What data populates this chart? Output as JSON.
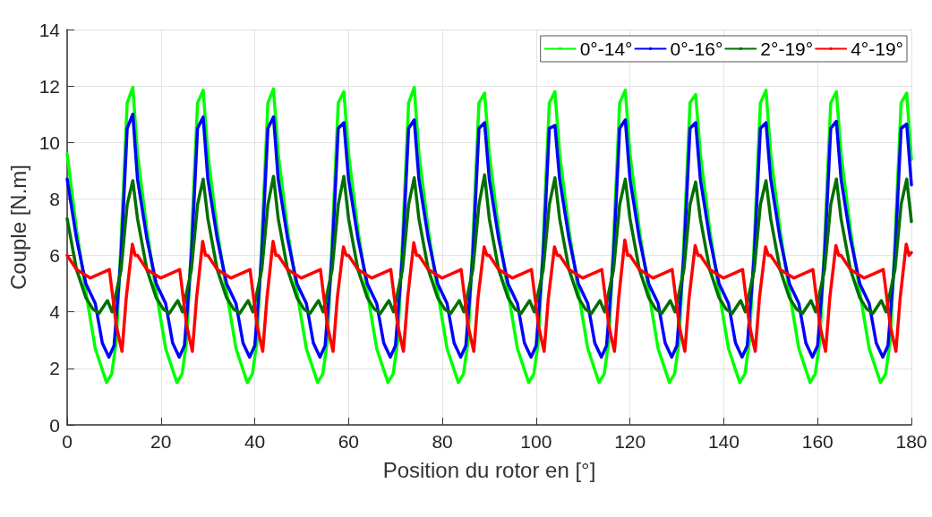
{
  "chart_data": {
    "type": "line",
    "xlabel": "Position du rotor en [°]",
    "ylabel": "Couple [N.m]",
    "xlim": [
      0,
      180
    ],
    "xticks": [
      0,
      20,
      40,
      60,
      80,
      100,
      120,
      140,
      160,
      180
    ],
    "ylim": [
      0,
      14
    ],
    "yticks": [
      0,
      2,
      4,
      6,
      8,
      10,
      12,
      14
    ],
    "grid": true,
    "legend": "top right",
    "marker": "none",
    "line_style": "solid",
    "series": [
      {
        "name": "0°-14°",
        "color": "#00ff00",
        "x": [
          0,
          2,
          4,
          6,
          8.4,
          9.5,
          10.5,
          11.5,
          12.8,
          14,
          15,
          17,
          19,
          21,
          23.4,
          24.5,
          25.5,
          26.5,
          27.8,
          29,
          30,
          32,
          34,
          36,
          38.4,
          39.5,
          40.5,
          41.5,
          42.8,
          44,
          45,
          47,
          49,
          51,
          53.4,
          54.5,
          55.5,
          56.5,
          57.8,
          59,
          60,
          62,
          64,
          66,
          68.4,
          69.5,
          70.5,
          71.5,
          72.8,
          74,
          75,
          77,
          79,
          81,
          83.4,
          84.5,
          85.5,
          86.5,
          87.8,
          89,
          90,
          92,
          94,
          96,
          98.4,
          99.5,
          100.5,
          101.5,
          102.8,
          104,
          105,
          107,
          109,
          111,
          113.4,
          114.5,
          115.5,
          116.5,
          117.8,
          119,
          120,
          122,
          124,
          126,
          128.4,
          129.5,
          130.5,
          131.5,
          132.8,
          134,
          135,
          137,
          139,
          141,
          143.4,
          144.5,
          145.5,
          146.5,
          147.8,
          149,
          150,
          152,
          154,
          156,
          158.4,
          159.5,
          160.5,
          161.5,
          162.8,
          164,
          165,
          167,
          169,
          171,
          173.4,
          174.5,
          175.5,
          176.5,
          177.8,
          179,
          180
        ],
        "values": [
          9.6,
          6.9,
          4.7,
          2.7,
          1.5,
          1.8,
          3.0,
          6.5,
          11.4,
          11.95,
          9.6,
          6.9,
          4.7,
          2.7,
          1.5,
          1.8,
          3.0,
          6.5,
          11.4,
          11.85,
          9.6,
          6.9,
          4.7,
          2.7,
          1.5,
          1.8,
          3.0,
          6.5,
          11.4,
          11.9,
          9.6,
          6.9,
          4.7,
          2.7,
          1.5,
          1.8,
          3.0,
          6.5,
          11.4,
          11.8,
          9.6,
          6.9,
          4.7,
          2.7,
          1.5,
          1.8,
          3.0,
          6.5,
          11.4,
          11.95,
          9.6,
          6.9,
          4.7,
          2.7,
          1.5,
          1.8,
          3.0,
          6.5,
          11.4,
          11.75,
          9.6,
          6.9,
          4.7,
          2.7,
          1.5,
          1.8,
          3.0,
          6.5,
          11.4,
          11.8,
          9.6,
          6.9,
          4.7,
          2.7,
          1.5,
          1.8,
          3.0,
          6.5,
          11.4,
          11.85,
          9.6,
          6.9,
          4.7,
          2.7,
          1.5,
          1.8,
          3.0,
          6.5,
          11.4,
          11.7,
          9.6,
          6.9,
          4.7,
          2.7,
          1.5,
          1.8,
          3.0,
          6.5,
          11.4,
          11.85,
          9.6,
          6.9,
          4.7,
          2.7,
          1.5,
          1.8,
          3.0,
          6.5,
          11.4,
          11.8,
          9.6,
          6.9,
          4.7,
          2.7,
          1.5,
          1.8,
          3.0,
          6.5,
          11.4,
          11.75,
          9.4
        ]
      },
      {
        "name": "0°-16°",
        "color": "#0000ff",
        "x": [
          0,
          2,
          4,
          6,
          7.5,
          8.9,
          10,
          11.5,
          12.8,
          14,
          15,
          17,
          19,
          21,
          22.5,
          23.9,
          25,
          26.5,
          27.8,
          29,
          30,
          32,
          34,
          36,
          37.5,
          38.9,
          40,
          41.5,
          42.8,
          44,
          45,
          47,
          49,
          51,
          52.5,
          53.9,
          55,
          56.5,
          57.8,
          59,
          60,
          62,
          64,
          66,
          67.5,
          68.9,
          70,
          71.5,
          72.8,
          74,
          75,
          77,
          79,
          81,
          82.5,
          83.9,
          85,
          86.5,
          87.8,
          89,
          90,
          92,
          94,
          96,
          97.5,
          98.9,
          100,
          101.5,
          102.8,
          104,
          105,
          107,
          109,
          111,
          112.5,
          113.9,
          115,
          116.5,
          117.8,
          119,
          120,
          122,
          124,
          126,
          127.5,
          128.9,
          130,
          131.5,
          132.8,
          134,
          135,
          137,
          139,
          141,
          142.5,
          143.9,
          145,
          146.5,
          147.8,
          149,
          150,
          152,
          154,
          156,
          157.5,
          158.9,
          160,
          161.5,
          162.8,
          164,
          165,
          167,
          169,
          171,
          172.5,
          173.9,
          175,
          176.5,
          177.8,
          179,
          180
        ],
        "values": [
          8.7,
          6.6,
          5.0,
          4.3,
          2.9,
          2.4,
          2.8,
          6.0,
          10.5,
          11.0,
          8.7,
          6.6,
          5.0,
          4.3,
          2.9,
          2.4,
          2.8,
          6.0,
          10.5,
          10.9,
          8.7,
          6.6,
          5.0,
          4.3,
          2.9,
          2.4,
          2.8,
          6.0,
          10.5,
          10.9,
          8.7,
          6.6,
          5.0,
          4.3,
          2.9,
          2.4,
          2.8,
          6.0,
          10.5,
          10.7,
          8.7,
          6.6,
          5.0,
          4.3,
          2.9,
          2.4,
          2.8,
          6.0,
          10.5,
          10.8,
          8.7,
          6.6,
          5.0,
          4.3,
          2.9,
          2.4,
          2.8,
          6.0,
          10.5,
          10.7,
          8.7,
          6.6,
          5.0,
          4.3,
          2.9,
          2.4,
          2.8,
          6.0,
          10.5,
          10.6,
          8.7,
          6.6,
          5.0,
          4.3,
          2.9,
          2.4,
          2.8,
          6.0,
          10.5,
          10.8,
          8.7,
          6.6,
          5.0,
          4.3,
          2.9,
          2.4,
          2.8,
          6.0,
          10.5,
          10.7,
          8.7,
          6.6,
          5.0,
          4.3,
          2.9,
          2.4,
          2.8,
          6.0,
          10.5,
          10.7,
          8.7,
          6.6,
          5.0,
          4.3,
          2.9,
          2.4,
          2.8,
          6.0,
          10.5,
          10.75,
          8.7,
          6.6,
          5.0,
          4.3,
          2.9,
          2.4,
          2.8,
          6.0,
          10.5,
          10.65,
          8.5
        ]
      },
      {
        "name": "2°-19°",
        "color": "#007000",
        "x": [
          0,
          2,
          4,
          5.5,
          6.8,
          8.6,
          9.6,
          11.5,
          12.8,
          14,
          15,
          17,
          19,
          20.5,
          21.8,
          23.6,
          24.6,
          26.5,
          27.8,
          29,
          30,
          32,
          34,
          35.5,
          36.8,
          38.6,
          39.6,
          41.5,
          42.8,
          44,
          45,
          47,
          49,
          50.5,
          51.8,
          53.6,
          54.6,
          56.5,
          57.8,
          59,
          60,
          62,
          64,
          65.5,
          66.8,
          68.6,
          69.6,
          71.5,
          72.8,
          74,
          75,
          77,
          79,
          80.5,
          81.8,
          83.6,
          84.6,
          86.5,
          87.8,
          89,
          90,
          92,
          94,
          95.5,
          96.8,
          98.6,
          99.6,
          101.5,
          102.8,
          104,
          105,
          107,
          109,
          110.5,
          111.8,
          113.6,
          114.6,
          116.5,
          117.8,
          119,
          120,
          122,
          124,
          125.5,
          126.8,
          128.6,
          129.6,
          131.5,
          132.8,
          134,
          135,
          137,
          139,
          140.5,
          141.8,
          143.6,
          144.6,
          146.5,
          147.8,
          149,
          150,
          152,
          154,
          155.5,
          156.8,
          158.6,
          159.6,
          161.5,
          162.8,
          164,
          165,
          167,
          169,
          170.5,
          171.8,
          173.6,
          174.6,
          176.5,
          177.8,
          179,
          180
        ],
        "values": [
          7.3,
          5.5,
          4.5,
          4.1,
          3.95,
          4.4,
          4.0,
          5.5,
          7.8,
          8.65,
          7.3,
          5.5,
          4.5,
          4.1,
          3.95,
          4.4,
          4.0,
          5.5,
          7.8,
          8.7,
          7.3,
          5.5,
          4.5,
          4.1,
          3.95,
          4.4,
          4.0,
          5.5,
          7.8,
          8.8,
          7.3,
          5.5,
          4.5,
          4.1,
          3.95,
          4.4,
          4.0,
          5.5,
          7.8,
          8.8,
          7.3,
          5.5,
          4.5,
          4.1,
          3.95,
          4.4,
          4.0,
          5.5,
          7.8,
          8.75,
          7.3,
          5.5,
          4.5,
          4.1,
          3.95,
          4.4,
          4.0,
          5.5,
          7.8,
          8.85,
          7.3,
          5.5,
          4.5,
          4.1,
          3.95,
          4.4,
          4.0,
          5.5,
          7.8,
          8.75,
          7.3,
          5.5,
          4.5,
          4.1,
          3.95,
          4.4,
          4.0,
          5.5,
          7.8,
          8.7,
          7.3,
          5.5,
          4.5,
          4.1,
          3.95,
          4.4,
          4.0,
          5.5,
          7.8,
          8.6,
          7.3,
          5.5,
          4.5,
          4.1,
          3.95,
          4.4,
          4.0,
          5.5,
          7.8,
          8.65,
          7.3,
          5.5,
          4.5,
          4.1,
          3.95,
          4.4,
          4.0,
          5.5,
          7.8,
          8.7,
          7.3,
          5.5,
          4.5,
          4.1,
          3.95,
          4.4,
          4.0,
          5.5,
          7.8,
          8.7,
          7.2
        ]
      },
      {
        "name": "4°-19°",
        "color": "#ff0000",
        "x": [
          0,
          2,
          4.9,
          9,
          10.5,
          11.7,
          12.6,
          13.9,
          14.5,
          15,
          17,
          19.9,
          24,
          25.5,
          26.7,
          27.6,
          28.9,
          29.5,
          30,
          32,
          34.9,
          39,
          40.5,
          41.7,
          42.6,
          43.9,
          44.5,
          45,
          47,
          49.9,
          54,
          55.5,
          56.7,
          57.6,
          58.9,
          59.5,
          60,
          62,
          64.9,
          69,
          70.5,
          71.7,
          72.6,
          73.9,
          74.5,
          75,
          77,
          79.9,
          84,
          85.5,
          86.7,
          87.6,
          88.9,
          89.5,
          90,
          92,
          94.9,
          99,
          100.5,
          101.7,
          102.6,
          103.9,
          104.5,
          105,
          107,
          109.9,
          114,
          115.5,
          116.7,
          117.6,
          118.9,
          119.5,
          120,
          122,
          124.9,
          129,
          130.5,
          131.7,
          132.6,
          133.9,
          134.5,
          135,
          137,
          139.9,
          144,
          145.5,
          146.7,
          147.6,
          148.9,
          149.5,
          150,
          152,
          154.9,
          159,
          160.5,
          161.7,
          162.6,
          163.9,
          164.5,
          165,
          167,
          169.9,
          174,
          175.5,
          176.7,
          177.6,
          178.9,
          179.5,
          180
        ],
        "values": [
          6.0,
          5.5,
          5.2,
          5.5,
          3.5,
          2.6,
          4.5,
          6.4,
          6.0,
          6.0,
          5.5,
          5.2,
          5.5,
          3.5,
          2.6,
          4.5,
          6.5,
          6.0,
          6.0,
          5.5,
          5.2,
          5.5,
          3.5,
          2.6,
          4.5,
          6.5,
          6.0,
          6.0,
          5.5,
          5.2,
          5.5,
          3.5,
          2.6,
          4.5,
          6.3,
          6.0,
          6.0,
          5.5,
          5.2,
          5.5,
          3.5,
          2.6,
          4.5,
          6.45,
          6.0,
          6.0,
          5.5,
          5.2,
          5.5,
          3.5,
          2.6,
          4.5,
          6.3,
          6.0,
          6.0,
          5.5,
          5.2,
          5.5,
          3.5,
          2.6,
          4.5,
          6.3,
          6.0,
          6.0,
          5.5,
          5.2,
          5.5,
          3.5,
          2.6,
          4.5,
          6.55,
          6.0,
          6.0,
          5.5,
          5.2,
          5.5,
          3.5,
          2.6,
          4.5,
          6.35,
          6.0,
          6.0,
          5.5,
          5.2,
          5.5,
          3.5,
          2.6,
          4.5,
          6.3,
          6.0,
          6.0,
          5.5,
          5.2,
          5.5,
          3.5,
          2.6,
          4.5,
          6.35,
          6.0,
          6.0,
          5.5,
          5.2,
          5.5,
          3.5,
          2.6,
          4.5,
          6.4,
          6.0,
          6.1
        ]
      }
    ]
  }
}
